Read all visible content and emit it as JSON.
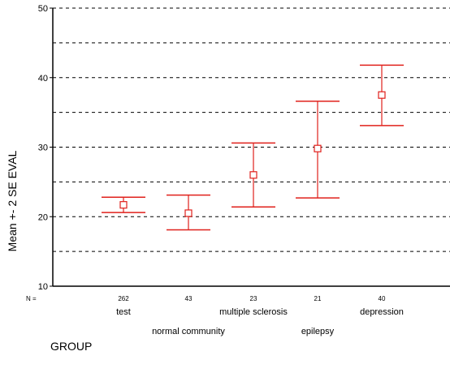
{
  "chart_data": {
    "type": "errorbar",
    "title": "",
    "xlabel": "GROUP",
    "ylabel": "Mean +- 2 SE EVAL",
    "ylim": [
      10,
      50
    ],
    "y_ticks": [
      10,
      20,
      30,
      40,
      50
    ],
    "grid": {
      "dashed_lines_at": [
        15,
        20,
        25,
        30,
        35,
        40,
        45,
        50
      ]
    },
    "n_label": "N =",
    "categories": [
      "test",
      "normal community",
      "multiple sclerosis",
      "epilepsy",
      "depression"
    ],
    "n": [
      "262",
      "43",
      "23",
      "21",
      "40"
    ],
    "mean": [
      21.7,
      20.5,
      26.0,
      29.8,
      37.5
    ],
    "lower": [
      20.6,
      18.1,
      21.4,
      22.7,
      33.1
    ],
    "upper": [
      22.8,
      23.1,
      30.6,
      36.6,
      41.8
    ],
    "series_color": "#e0201b"
  }
}
